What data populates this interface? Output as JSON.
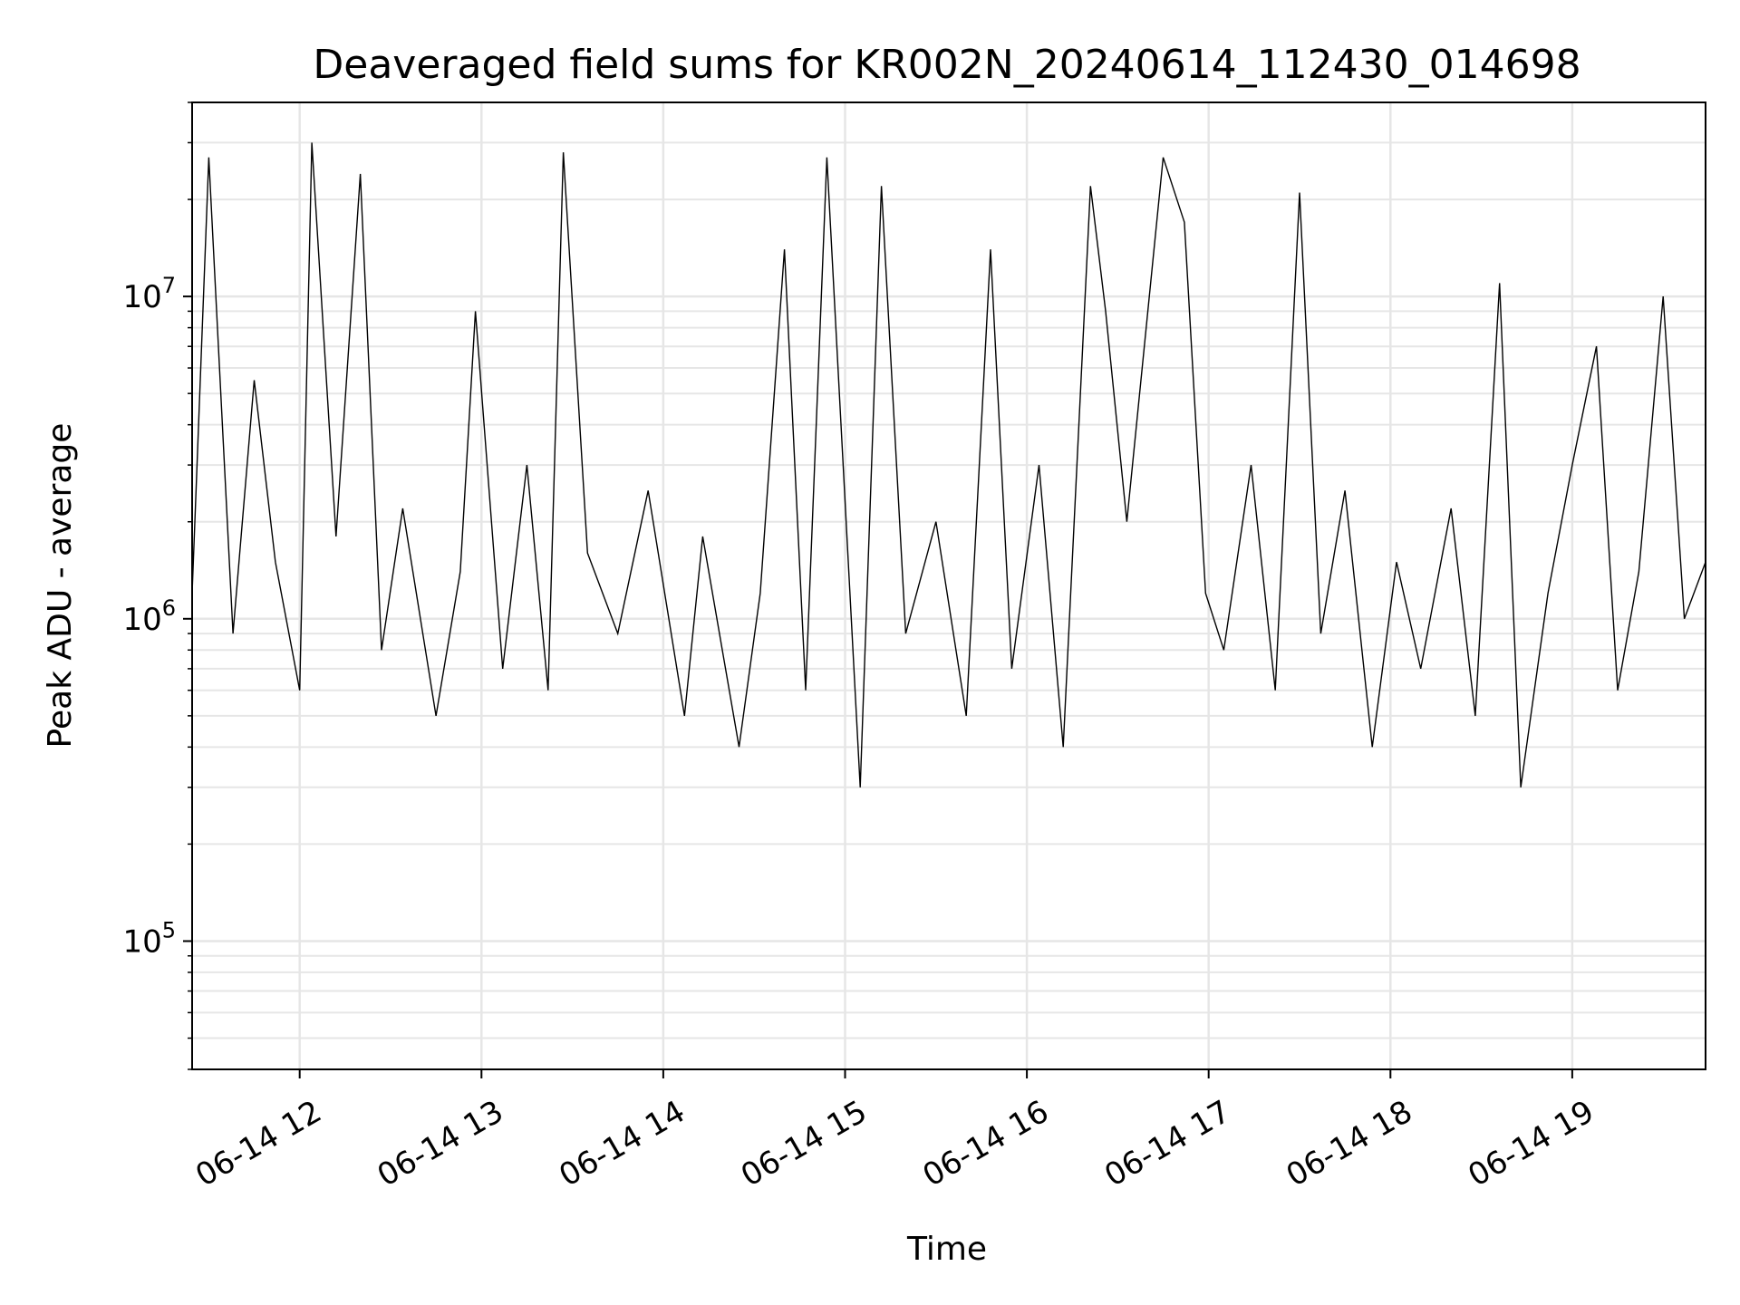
{
  "chart_data": {
    "type": "line",
    "title": "Deaveraged field sums for KR002N_20240614_112430_014698",
    "xlabel": "Time",
    "ylabel": "Peak ADU - average",
    "xlim": [
      "2024-06-14T11:24:30",
      "2024-06-14T19:44:00"
    ],
    "ylim": [
      40000,
      40000000
    ],
    "yscale": "log",
    "grid": true,
    "x_ticks": [
      {
        "value": "2024-06-14T12:00:00",
        "label": "06-14 12"
      },
      {
        "value": "2024-06-14T13:00:00",
        "label": "06-14 13"
      },
      {
        "value": "2024-06-14T14:00:00",
        "label": "06-14 14"
      },
      {
        "value": "2024-06-14T15:00:00",
        "label": "06-14 15"
      },
      {
        "value": "2024-06-14T16:00:00",
        "label": "06-14 16"
      },
      {
        "value": "2024-06-14T17:00:00",
        "label": "06-14 17"
      },
      {
        "value": "2024-06-14T18:00:00",
        "label": "06-14 18"
      },
      {
        "value": "2024-06-14T19:00:00",
        "label": "06-14 19"
      }
    ],
    "y_ticks": [
      {
        "value": 100000,
        "base": "10",
        "exp": "5"
      },
      {
        "value": 1000000,
        "base": "10",
        "exp": "6"
      },
      {
        "value": 10000000,
        "base": "10",
        "exp": "7"
      }
    ],
    "series": [
      {
        "color": "#000000",
        "x": [
          "2024-06-14T11:24:30",
          "2024-06-14T11:30:00",
          "2024-06-14T11:38:00",
          "2024-06-14T11:45:00",
          "2024-06-14T11:52:00",
          "2024-06-14T12:00:00",
          "2024-06-14T12:04:00",
          "2024-06-14T12:12:00",
          "2024-06-14T12:20:00",
          "2024-06-14T12:27:00",
          "2024-06-14T12:34:00",
          "2024-06-14T12:45:00",
          "2024-06-14T12:53:00",
          "2024-06-14T12:58:00",
          "2024-06-14T13:07:00",
          "2024-06-14T13:15:00",
          "2024-06-14T13:22:00",
          "2024-06-14T13:27:00",
          "2024-06-14T13:35:00",
          "2024-06-14T13:45:00",
          "2024-06-14T13:55:00",
          "2024-06-14T14:07:00",
          "2024-06-14T14:13:00",
          "2024-06-14T14:25:00",
          "2024-06-14T14:32:00",
          "2024-06-14T14:40:00",
          "2024-06-14T14:47:00",
          "2024-06-14T14:54:00",
          "2024-06-14T15:05:00",
          "2024-06-14T15:12:00",
          "2024-06-14T15:20:00",
          "2024-06-14T15:30:00",
          "2024-06-14T15:40:00",
          "2024-06-14T15:48:00",
          "2024-06-14T15:55:00",
          "2024-06-14T16:04:00",
          "2024-06-14T16:12:00",
          "2024-06-14T16:21:00",
          "2024-06-14T16:26:00",
          "2024-06-14T16:33:00",
          "2024-06-14T16:45:00",
          "2024-06-14T16:52:00",
          "2024-06-14T16:59:00",
          "2024-06-14T17:05:00",
          "2024-06-14T17:14:00",
          "2024-06-14T17:22:00",
          "2024-06-14T17:30:00",
          "2024-06-14T17:37:00",
          "2024-06-14T17:45:00",
          "2024-06-14T17:54:00",
          "2024-06-14T18:02:00",
          "2024-06-14T18:10:00",
          "2024-06-14T18:20:00",
          "2024-06-14T18:28:00",
          "2024-06-14T18:36:00",
          "2024-06-14T18:43:00",
          "2024-06-14T18:52:00",
          "2024-06-14T19:00:00",
          "2024-06-14T19:08:00",
          "2024-06-14T19:15:00",
          "2024-06-14T19:22:00",
          "2024-06-14T19:30:00",
          "2024-06-14T19:37:00",
          "2024-06-14T19:44:00"
        ],
        "y": [
          1200000,
          27000000,
          900000,
          5500000,
          1500000,
          600000,
          30000000,
          1800000,
          24000000,
          800000,
          2200000,
          500000,
          1400000,
          9000000,
          700000,
          3000000,
          600000,
          28000000,
          1600000,
          900000,
          2500000,
          500000,
          1800000,
          400000,
          1200000,
          14000000,
          600000,
          27000000,
          300000,
          22000000,
          900000,
          2000000,
          500000,
          14000000,
          700000,
          3000000,
          400000,
          22000000,
          9000000,
          2000000,
          27000000,
          17000000,
          1200000,
          800000,
          3000000,
          600000,
          21000000,
          900000,
          2500000,
          400000,
          1500000,
          700000,
          2200000,
          500000,
          11000000,
          300000,
          1200000,
          3000000,
          7000000,
          600000,
          1400000,
          10000000,
          1000000,
          1500000
        ]
      }
    ]
  }
}
